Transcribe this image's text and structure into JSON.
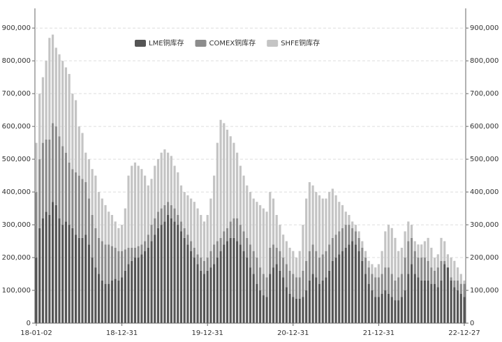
{
  "chart_data": {
    "type": "stacked_bar",
    "categories": [
      "18-01-02",
      null,
      null,
      null,
      null,
      null,
      null,
      null,
      null,
      null,
      null,
      null,
      null,
      null,
      null,
      null,
      null,
      null,
      null,
      null,
      null,
      null,
      null,
      null,
      null,
      null,
      "18-12-31",
      null,
      null,
      null,
      null,
      null,
      null,
      null,
      null,
      null,
      null,
      null,
      null,
      null,
      null,
      null,
      null,
      null,
      null,
      null,
      null,
      null,
      null,
      null,
      null,
      null,
      "19-12-31",
      null,
      null,
      null,
      null,
      null,
      null,
      null,
      null,
      null,
      null,
      null,
      null,
      null,
      null,
      null,
      null,
      null,
      null,
      null,
      null,
      null,
      null,
      null,
      null,
      null,
      "20-12-31",
      null,
      null,
      null,
      null,
      null,
      null,
      null,
      null,
      null,
      null,
      null,
      null,
      null,
      null,
      null,
      null,
      null,
      null,
      null,
      null,
      null,
      null,
      null,
      null,
      null,
      "21-12-31",
      null,
      null,
      null,
      null,
      null,
      null,
      null,
      null,
      null,
      null,
      null,
      null,
      null,
      null,
      null,
      null,
      null,
      null,
      null,
      null,
      null,
      null,
      null,
      null,
      null,
      "22-12-27"
    ],
    "series": [
      {
        "name": "LME铜库存",
        "color": "#555555",
        "values": [
          200000,
          290000,
          320000,
          340000,
          330000,
          370000,
          360000,
          320000,
          300000,
          310000,
          300000,
          290000,
          270000,
          260000,
          260000,
          270000,
          240000,
          200000,
          170000,
          150000,
          130000,
          120000,
          120000,
          130000,
          135000,
          130000,
          140000,
          160000,
          180000,
          190000,
          200000,
          200000,
          210000,
          220000,
          230000,
          250000,
          270000,
          290000,
          300000,
          310000,
          330000,
          320000,
          310000,
          300000,
          280000,
          260000,
          240000,
          220000,
          200000,
          180000,
          160000,
          150000,
          160000,
          170000,
          180000,
          200000,
          220000,
          240000,
          250000,
          260000,
          260000,
          250000,
          240000,
          220000,
          200000,
          170000,
          150000,
          120000,
          100000,
          85000,
          80000,
          150000,
          170000,
          180000,
          160000,
          140000,
          110000,
          90000,
          80000,
          75000,
          75000,
          80000,
          100000,
          130000,
          150000,
          140000,
          120000,
          130000,
          140000,
          160000,
          190000,
          200000,
          210000,
          220000,
          230000,
          240000,
          250000,
          240000,
          220000,
          190000,
          150000,
          120000,
          100000,
          80000,
          80000,
          90000,
          100000,
          90000,
          80000,
          70000,
          70000,
          80000,
          100000,
          150000,
          180000,
          150000,
          140000,
          130000,
          130000,
          130000,
          120000,
          120000,
          110000,
          130000,
          180000,
          170000,
          130000,
          110000,
          100000,
          90000,
          80000
        ]
      },
      {
        "name": "COMEX铜库存",
        "color": "#8c8c8c",
        "values": [
          200000,
          210000,
          230000,
          220000,
          230000,
          240000,
          240000,
          250000,
          240000,
          210000,
          190000,
          180000,
          190000,
          190000,
          180000,
          160000,
          140000,
          130000,
          120000,
          110000,
          120000,
          120000,
          120000,
          105000,
          95000,
          90000,
          80000,
          65000,
          50000,
          40000,
          30000,
          35000,
          30000,
          30000,
          40000,
          50000,
          50000,
          50000,
          50000,
          50000,
          40000,
          40000,
          40000,
          30000,
          30000,
          30000,
          30000,
          30000,
          30000,
          30000,
          40000,
          40000,
          40000,
          50000,
          60000,
          50000,
          40000,
          40000,
          40000,
          50000,
          60000,
          70000,
          60000,
          60000,
          60000,
          70000,
          70000,
          80000,
          70000,
          65000,
          60000,
          80000,
          70000,
          50000,
          60000,
          60000,
          70000,
          70000,
          70000,
          65000,
          65000,
          80000,
          90000,
          90000,
          90000,
          80000,
          80000,
          80000,
          80000,
          80000,
          70000,
          70000,
          70000,
          70000,
          70000,
          60000,
          40000,
          40000,
          40000,
          40000,
          50000,
          50000,
          50000,
          60000,
          60000,
          60000,
          70000,
          80000,
          70000,
          60000,
          70000,
          70000,
          100000,
          100000,
          80000,
          70000,
          60000,
          70000,
          70000,
          60000,
          50000,
          40000,
          60000,
          60000,
          10000,
          0,
          10000,
          20000,
          30000,
          30000,
          40000
        ]
      },
      {
        "name": "SHFE铜库存",
        "color": "#c4c4c4",
        "values": [
          150000,
          200000,
          200000,
          240000,
          310000,
          270000,
          240000,
          250000,
          260000,
          260000,
          270000,
          230000,
          220000,
          150000,
          140000,
          90000,
          120000,
          140000,
          160000,
          140000,
          130000,
          120000,
          100000,
          95000,
          80000,
          70000,
          80000,
          125000,
          220000,
          250000,
          260000,
          245000,
          230000,
          200000,
          150000,
          140000,
          160000,
          160000,
          170000,
          170000,
          150000,
          150000,
          130000,
          130000,
          110000,
          110000,
          120000,
          130000,
          140000,
          140000,
          130000,
          120000,
          130000,
          160000,
          210000,
          300000,
          360000,
          330000,
          300000,
          260000,
          230000,
          200000,
          180000,
          170000,
          160000,
          160000,
          160000,
          170000,
          190000,
          200000,
          200000,
          170000,
          140000,
          100000,
          80000,
          70000,
          70000,
          70000,
          70000,
          60000,
          80000,
          140000,
          190000,
          210000,
          180000,
          180000,
          190000,
          170000,
          160000,
          160000,
          150000,
          120000,
          90000,
          70000,
          40000,
          30000,
          20000,
          20000,
          20000,
          20000,
          20000,
          20000,
          30000,
          30000,
          40000,
          70000,
          110000,
          130000,
          140000,
          130000,
          80000,
          80000,
          80000,
          60000,
          40000,
          30000,
          40000,
          40000,
          50000,
          70000,
          60000,
          40000,
          40000,
          70000,
          60000,
          40000,
          60000,
          60000,
          40000,
          30000,
          10000
        ]
      }
    ],
    "ylim": [
      0,
      960000
    ],
    "yticks": [
      0,
      {
        "value": 100000,
        "label": "100,000"
      },
      {
        "value": 200000,
        "label": "200,000"
      },
      {
        "value": 300000,
        "label": "300,000"
      },
      {
        "value": 400000,
        "label": "400,000"
      },
      {
        "value": 500000,
        "label": "500,000"
      },
      {
        "value": 600000,
        "label": "600,000"
      },
      {
        "value": 700000,
        "label": "700,000"
      },
      {
        "value": 800000,
        "label": "800,000"
      },
      {
        "value": 900000,
        "label": "900,000"
      }
    ],
    "grid": true
  }
}
